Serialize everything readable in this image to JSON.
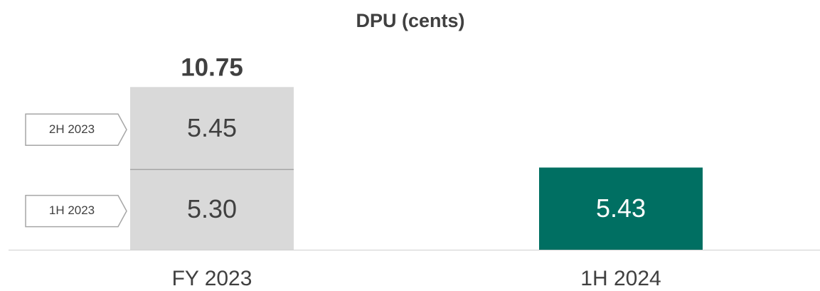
{
  "chart_data": {
    "type": "stacked_bar",
    "title": "DPU (cents)",
    "categories": [
      "FY 2023",
      "1H 2024"
    ],
    "series": [
      {
        "name": "1H 2023",
        "color": "#d9d9d9",
        "values": [
          5.3,
          null
        ],
        "value_labels": [
          "5.30",
          null
        ]
      },
      {
        "name": "2H 2023",
        "color": "#d9d9d9",
        "values": [
          5.45,
          null
        ]
      },
      {
        "color": "#006f62",
        "values": [
          null,
          5.43
        ]
      }
    ],
    "totals": [
      10.75,
      null
    ],
    "ylim": [
      0,
      11
    ]
  }
}
